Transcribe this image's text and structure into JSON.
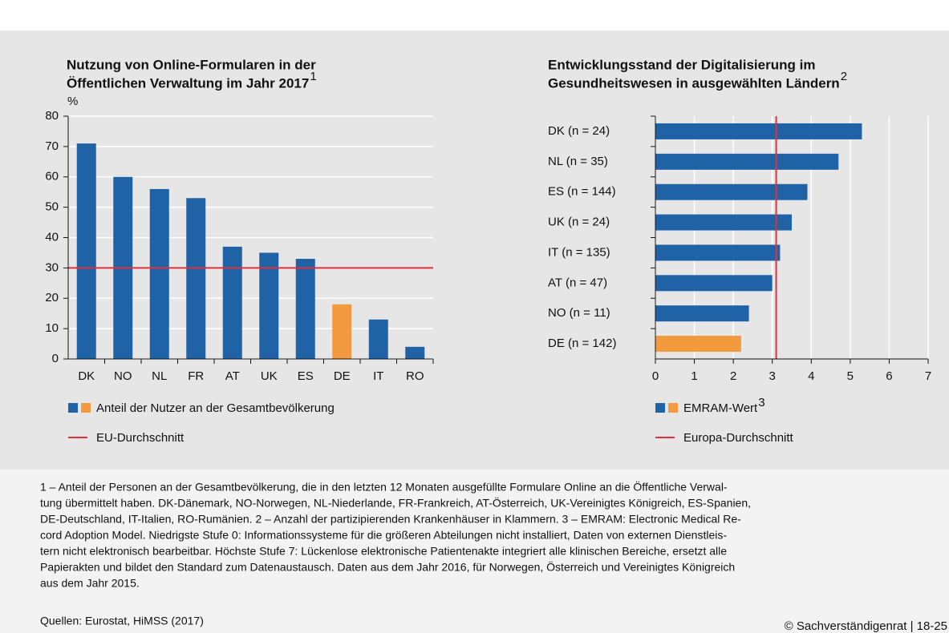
{
  "chart_data": [
    {
      "type": "bar",
      "title": [
        "Nutzung von Online-Formularen in der",
        "Öffentlichen Verwaltung im Jahr 2017"
      ],
      "title_note": "1",
      "y_unit": "%",
      "categories": [
        "DK",
        "NO",
        "NL",
        "FR",
        "AT",
        "UK",
        "ES",
        "DE",
        "IT",
        "RO"
      ],
      "values": [
        71,
        60,
        56,
        53,
        37,
        35,
        33,
        18,
        13,
        4
      ],
      "colors": [
        "#1f63a6",
        "#1f63a6",
        "#1f63a6",
        "#1f63a6",
        "#1f63a6",
        "#1f63a6",
        "#1f63a6",
        "#f39a3f",
        "#1f63a6",
        "#1f63a6"
      ],
      "ylim": [
        0,
        80
      ],
      "yticks": [
        0,
        10,
        20,
        30,
        40,
        50,
        60,
        70,
        80
      ],
      "grid": true,
      "reference": {
        "name": "EU-Durchschnitt",
        "value": 30,
        "color": "#e0303c"
      },
      "legend": "Anteil der Nutzer an der Gesamtbevölkerung"
    },
    {
      "type": "barh",
      "title": [
        "Entwicklungsstand der Digitalisierung im",
        "Gesundheitswesen in ausgewählten Ländern"
      ],
      "title_note": "2",
      "categories": [
        "DK (n = 24)",
        "NL (n = 35)",
        "ES (n = 144)",
        "UK (n = 24)",
        "IT (n = 135)",
        "AT (n = 47)",
        "NO (n = 11)",
        "DE (n = 142)"
      ],
      "values": [
        5.3,
        4.7,
        3.9,
        3.5,
        3.2,
        3.0,
        2.4,
        2.2
      ],
      "colors": [
        "#1f63a6",
        "#1f63a6",
        "#1f63a6",
        "#1f63a6",
        "#1f63a6",
        "#1f63a6",
        "#1f63a6",
        "#f39a3f"
      ],
      "xlim": [
        0,
        7
      ],
      "xticks": [
        0,
        1,
        2,
        3,
        4,
        5,
        6,
        7
      ],
      "grid": true,
      "reference": {
        "name": "Europa-Durchschnitt",
        "value": 3.1,
        "color": "#e0303c"
      },
      "legend": "EMRAM-Wert",
      "legend_note": "3"
    }
  ],
  "footnotes": [
    "1 – Anteil der Personen an der Gesamtbevölkerung, die in den letzten 12 Monaten ausgefüllte Formulare Online an die Öffentliche Verwal-",
    "tung übermittelt haben. DK-Dänemark, NO-Norwegen, NL-Niederlande, FR-Frankreich, AT-Österreich, UK-Vereinigtes Königreich, ES-Spanien,",
    "DE-Deutschland, IT-Italien, RO-Rumänien.  2 – Anzahl der partizipierenden Krankenhäuser in Klammern.  3 – EMRAM: Electronic Medical Re-",
    "cord Adoption Model. Niedrigste Stufe 0: Informationssysteme für die größeren Abteilungen nicht installiert, Daten von externen Dienstleis-",
    "tern nicht elektronisch bearbeitbar. Höchste Stufe 7: Lückenlose elektronische Patientenakte integriert alle klinischen Bereiche, ersetzt alle",
    "Papierakten und bildet den Standard zum Datenaustausch. Daten aus dem Jahr 2016, für Norwegen, Österreich und Vereinigtes Königreich",
    "aus dem Jahr 2015."
  ],
  "source": "Quellen: Eurostat, HiMSS (2017)",
  "copyright": "© Sachverständigenrat | 18-25"
}
